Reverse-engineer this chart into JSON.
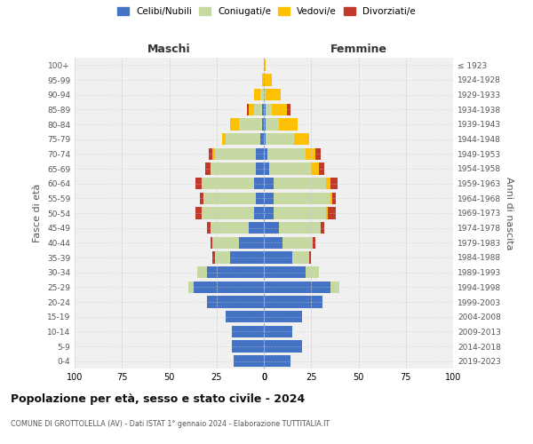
{
  "age_groups": [
    "0-4",
    "5-9",
    "10-14",
    "15-19",
    "20-24",
    "25-29",
    "30-34",
    "35-39",
    "40-44",
    "45-49",
    "50-54",
    "55-59",
    "60-64",
    "65-69",
    "70-74",
    "75-79",
    "80-84",
    "85-89",
    "90-94",
    "95-99",
    "100+"
  ],
  "birth_years": [
    "2019-2023",
    "2014-2018",
    "2009-2013",
    "2004-2008",
    "1999-2003",
    "1994-1998",
    "1989-1993",
    "1984-1988",
    "1979-1983",
    "1974-1978",
    "1969-1973",
    "1964-1968",
    "1959-1963",
    "1954-1958",
    "1949-1953",
    "1944-1948",
    "1939-1943",
    "1934-1938",
    "1929-1933",
    "1924-1928",
    "≤ 1923"
  ],
  "maschi": {
    "celibi": [
      16,
      17,
      17,
      20,
      30,
      37,
      30,
      18,
      13,
      8,
      5,
      4,
      5,
      4,
      4,
      2,
      1,
      1,
      0,
      0,
      0
    ],
    "coniugati": [
      0,
      0,
      0,
      0,
      0,
      3,
      5,
      8,
      14,
      20,
      28,
      28,
      28,
      24,
      22,
      18,
      12,
      4,
      2,
      0,
      0
    ],
    "vedovi": [
      0,
      0,
      0,
      0,
      0,
      0,
      0,
      0,
      0,
      0,
      0,
      0,
      0,
      0,
      1,
      2,
      5,
      3,
      3,
      1,
      0
    ],
    "divorziati": [
      0,
      0,
      0,
      0,
      0,
      0,
      0,
      1,
      1,
      2,
      3,
      2,
      3,
      3,
      2,
      0,
      0,
      1,
      0,
      0,
      0
    ]
  },
  "femmine": {
    "nubili": [
      14,
      20,
      15,
      20,
      31,
      35,
      22,
      15,
      10,
      8,
      5,
      5,
      5,
      3,
      2,
      1,
      1,
      1,
      0,
      0,
      0
    ],
    "coniugate": [
      0,
      0,
      0,
      0,
      0,
      5,
      7,
      9,
      16,
      22,
      28,
      30,
      28,
      22,
      20,
      15,
      7,
      3,
      1,
      0,
      0
    ],
    "vedove": [
      0,
      0,
      0,
      0,
      0,
      0,
      0,
      0,
      0,
      0,
      1,
      1,
      2,
      4,
      5,
      8,
      10,
      8,
      8,
      4,
      1
    ],
    "divorziate": [
      0,
      0,
      0,
      0,
      0,
      0,
      0,
      1,
      1,
      2,
      4,
      2,
      4,
      3,
      3,
      0,
      0,
      2,
      0,
      0,
      0
    ]
  },
  "colors": {
    "celibi": "#4472c4",
    "coniugati": "#c5d9a0",
    "vedovi": "#ffc000",
    "divorziati": "#c0392b"
  },
  "legend_labels": [
    "Celibi/Nubili",
    "Coniugati/e",
    "Vedovi/e",
    "Divorziati/e"
  ],
  "title": "Popolazione per età, sesso e stato civile - 2024",
  "subtitle": "COMUNE DI GROTTOLELLA (AV) - Dati ISTAT 1° gennaio 2024 - Elaborazione TUTTITALIA.IT",
  "ylabel_left": "Fasce di età",
  "ylabel_right": "Anni di nascita",
  "xlim": 100,
  "bg_color": "#f0f0f0",
  "grid_color": "#cccccc"
}
